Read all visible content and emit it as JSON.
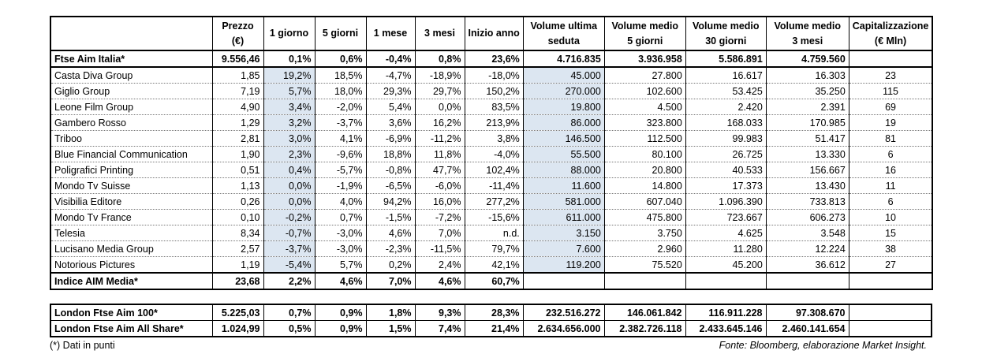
{
  "header": [
    [
      "Prezzo",
      "(€)"
    ],
    [
      "1 giorno"
    ],
    [
      "5 giorni"
    ],
    [
      "1 mese"
    ],
    [
      "3 mesi"
    ],
    [
      "Inizio anno"
    ],
    [
      "Volume ultima",
      "seduta"
    ],
    [
      "Volume medio",
      "5 giorni"
    ],
    [
      "Volume medio",
      "30 giorni"
    ],
    [
      "Volume medio",
      "3 mesi"
    ],
    [
      "Capitalizzazione",
      "(€ Mln)"
    ]
  ],
  "index_row": [
    "Ftse Aim Italia*",
    "9.556,46",
    "0,1%",
    "0,6%",
    "-0,4%",
    "0,8%",
    "23,6%",
    "4.716.835",
    "3.936.958",
    "5.586.891",
    "4.759.560"
  ],
  "rows": [
    [
      "Casta Diva Group",
      "1,85",
      "19,2%",
      "18,5%",
      "-4,7%",
      "-18,9%",
      "-18,0%",
      "45.000",
      "27.800",
      "16.617",
      "16.303",
      "23"
    ],
    [
      "Giglio Group",
      "7,19",
      "5,7%",
      "18,0%",
      "29,3%",
      "29,7%",
      "150,2%",
      "270.000",
      "102.600",
      "53.425",
      "35.250",
      "115"
    ],
    [
      "Leone Film Group",
      "4,90",
      "3,4%",
      "-2,0%",
      "5,4%",
      "0,0%",
      "83,5%",
      "19.800",
      "4.500",
      "2.420",
      "2.391",
      "69"
    ],
    [
      "Gambero Rosso",
      "1,29",
      "3,2%",
      "-3,7%",
      "3,6%",
      "16,2%",
      "213,9%",
      "86.000",
      "323.800",
      "168.033",
      "170.985",
      "19"
    ],
    [
      "Triboo",
      "2,81",
      "3,0%",
      "4,1%",
      "-6,9%",
      "-11,2%",
      "3,8%",
      "146.500",
      "112.500",
      "99.983",
      "51.417",
      "81"
    ],
    [
      "Blue Financial Communication",
      "1,90",
      "2,3%",
      "-9,6%",
      "18,8%",
      "11,8%",
      "-4,0%",
      "55.500",
      "80.100",
      "26.725",
      "13.330",
      "6"
    ],
    [
      "Poligrafici Printing",
      "0,51",
      "0,4%",
      "-5,7%",
      "-0,8%",
      "47,7%",
      "102,4%",
      "88.000",
      "20.800",
      "40.533",
      "156.667",
      "16"
    ],
    [
      "Mondo Tv Suisse",
      "1,13",
      "0,0%",
      "-1,9%",
      "-6,5%",
      "-6,0%",
      "-11,4%",
      "11.600",
      "14.800",
      "17.373",
      "13.430",
      "11"
    ],
    [
      "Visibilia Editore",
      "0,26",
      "0,0%",
      "4,0%",
      "94,2%",
      "16,0%",
      "277,2%",
      "581.000",
      "607.040",
      "1.096.390",
      "733.813",
      "6"
    ],
    [
      "Mondo Tv France",
      "0,10",
      "-0,2%",
      "0,7%",
      "-1,5%",
      "-7,2%",
      "-15,6%",
      "611.000",
      "475.800",
      "723.667",
      "606.273",
      "10"
    ],
    [
      "Telesia",
      "8,34",
      "-0,7%",
      "-3,0%",
      "4,6%",
      "7,0%",
      "n.d.",
      "3.150",
      "3.750",
      "4.625",
      "3.548",
      "15"
    ],
    [
      "Lucisano Media Group",
      "2,57",
      "-3,7%",
      "-3,0%",
      "-2,3%",
      "-11,5%",
      "79,7%",
      "7.600",
      "2.960",
      "11.280",
      "12.224",
      "38"
    ],
    [
      "Notorious Pictures",
      "1,19",
      "-5,4%",
      "5,7%",
      "0,2%",
      "2,4%",
      "42,1%",
      "119.200",
      "75.520",
      "45.200",
      "36.612",
      "27"
    ]
  ],
  "sector_row": [
    "Indice AIM Media*",
    "23,68",
    "2,2%",
    "4,6%",
    "7,0%",
    "4,6%",
    "60,7%"
  ],
  "london_rows": [
    [
      "London Ftse Aim 100*",
      "5.225,03",
      "0,7%",
      "0,9%",
      "1,8%",
      "9,3%",
      "28,3%",
      "232.516.272",
      "146.061.842",
      "116.911.228",
      "97.308.670"
    ],
    [
      "London Ftse Aim All Share*",
      "1.024,99",
      "0,5%",
      "0,9%",
      "1,5%",
      "7,4%",
      "21,4%",
      "2.634.656.000",
      "2.382.726.118",
      "2.433.645.146",
      "2.460.141.654"
    ]
  ],
  "footnote": "(*) Dati in punti",
  "source": "Fonte: Bloomberg, elaborazione Market Insight."
}
